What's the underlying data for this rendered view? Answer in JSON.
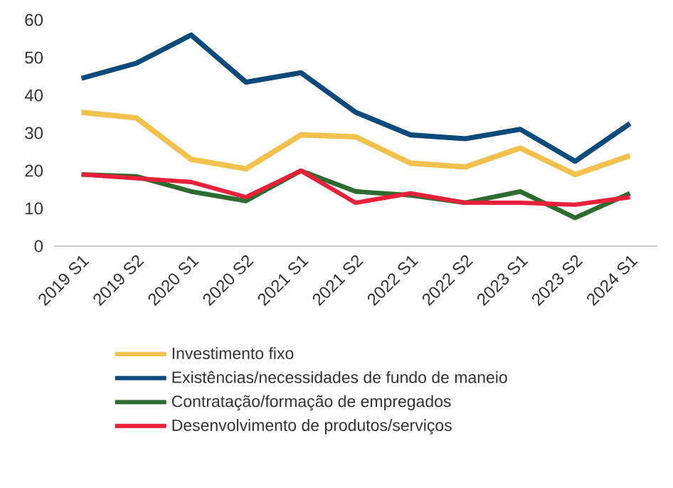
{
  "chart_data": {
    "type": "line",
    "categories": [
      "2019 S1",
      "2019 S2",
      "2020 S1",
      "2020 S2",
      "2021 S1",
      "2021 S2",
      "2022 S1",
      "2022 S2",
      "2023 S1",
      "2023 S2",
      "2024 S1"
    ],
    "ylim": [
      0,
      60
    ],
    "yticks": [
      0,
      10,
      20,
      30,
      40,
      50,
      60
    ],
    "grid": false,
    "legend": "bottom",
    "marker": "none",
    "line_style": "solid",
    "series": [
      {
        "name": "Investimento fixo",
        "color": "#f2c14e",
        "values": [
          35.5,
          34,
          23,
          20.5,
          29.5,
          29,
          22,
          21,
          26,
          19,
          24
        ]
      },
      {
        "name": "Existências/necessidades de fundo de maneio",
        "color": "#0d4a7c",
        "values": [
          44.5,
          48.5,
          56,
          43.5,
          46,
          35.5,
          29.5,
          28.5,
          31,
          22.5,
          32.5
        ]
      },
      {
        "name": "Contratação/formação de empregados",
        "color": "#2e6b2e",
        "values": [
          19,
          18.5,
          14.5,
          12,
          20,
          14.5,
          13.5,
          11.5,
          14.5,
          7.5,
          14
        ]
      },
      {
        "name": "Desenvolvimento de produtos/serviços",
        "color": "#e8203a",
        "values": [
          19,
          18,
          17,
          13,
          20,
          11.5,
          14,
          11.5,
          11.5,
          11,
          13
        ]
      }
    ]
  }
}
